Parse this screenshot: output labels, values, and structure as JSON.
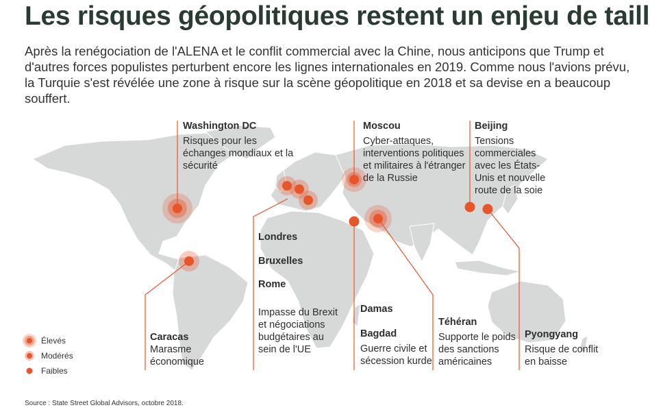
{
  "title": "Les risques géopolitiques restent un enjeu de taille",
  "intro": "Après la renégociation de l'ALENA et le conflit commercial avec la Chine, nous anticipons que Trump et d'autres forces populistes perturbent encore les lignes internationales en 2019. Comme nous l'avions prévu, la Turquie s'est révélée une zone à risque sur la scène géopolitique en 2018 et sa devise en a beaucoup souffert.",
  "colors": {
    "accent": "#e8552a",
    "map": "#d7d9d8",
    "title": "#2a3b33"
  },
  "regions": {
    "washington": {
      "city": "Washington DC",
      "text": "Risques pour les échanges mondiaux et la sécurité",
      "risk": "Élevés"
    },
    "moscou": {
      "city": "Moscou",
      "text": "Cyber-attaques, interventions politiques et militaires à l'étranger de la Russie",
      "risk": "Élevés"
    },
    "beijing": {
      "city": "Beijing",
      "text": "Tensions commerciales avec les États-Unis et nouvelle route de la soie",
      "risk": "Faibles"
    },
    "europe": {
      "cities": [
        "Londres",
        "Bruxelles",
        "Rome"
      ],
      "text": "Impasse du Brexit et négociations budgétaires au sein de l'UE",
      "risk": "Modérés"
    },
    "caracas": {
      "city": "Caracas",
      "text": "Marasme économique",
      "risk": "Modérés"
    },
    "moyen_orient": {
      "cities": [
        "Damas",
        "Bagdad"
      ],
      "text": "Guerre civile et sécession kurde",
      "risk": "Élevés"
    },
    "teheran": {
      "city": "Téhéran",
      "text": "Supporte le poids des sanctions américaines",
      "risk": "Faibles"
    },
    "pyongyang": {
      "city": "Pyongyang",
      "text": "Risque de conflit en baisse",
      "risk": "Faibles"
    }
  },
  "legend": [
    "Élevés",
    "Modérés",
    "Faibles"
  ],
  "source": "Source : State Street Global Advisors, octobre 2018."
}
